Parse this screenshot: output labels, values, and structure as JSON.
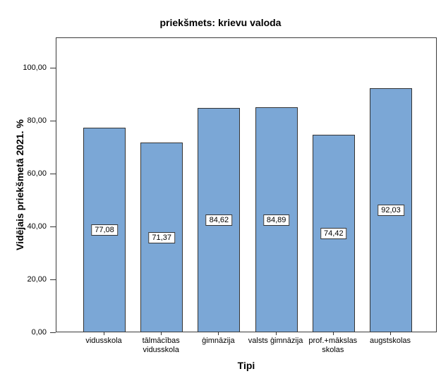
{
  "chart_data": {
    "type": "bar",
    "title": "priekšmets: krievu valoda",
    "xlabel": "Tipi",
    "ylabel": "Vidējais priekšmetā 2021. %",
    "categories": [
      "vidusskola",
      "tālmācības\nvidusskola",
      "ģimnāzija",
      "valsts ģimnāzija",
      "prof.+mākslas\nskolas",
      "augstskolas"
    ],
    "values": [
      77.08,
      71.37,
      84.62,
      84.89,
      74.42,
      92.03
    ],
    "value_labels": [
      "77,08",
      "71,37",
      "84,62",
      "84,89",
      "74,42",
      "92,03"
    ],
    "y_ticks": [
      {
        "value": 0,
        "label": "0,00"
      },
      {
        "value": 20,
        "label": "20,00"
      },
      {
        "value": 40,
        "label": "40,00"
      },
      {
        "value": 60,
        "label": "60,00"
      },
      {
        "value": 80,
        "label": "80,00"
      },
      {
        "value": 100,
        "label": "100,00"
      }
    ],
    "ylim": [
      0,
      111.5
    ],
    "grid": false,
    "legend": "none",
    "value_label_position": "middle-of-bar",
    "colors": {
      "bar_fill": "#7BA7D6",
      "bar_border": "#333333",
      "frame_border": "#3a3a3a",
      "text": "#000000",
      "background": "#ffffff"
    }
  }
}
